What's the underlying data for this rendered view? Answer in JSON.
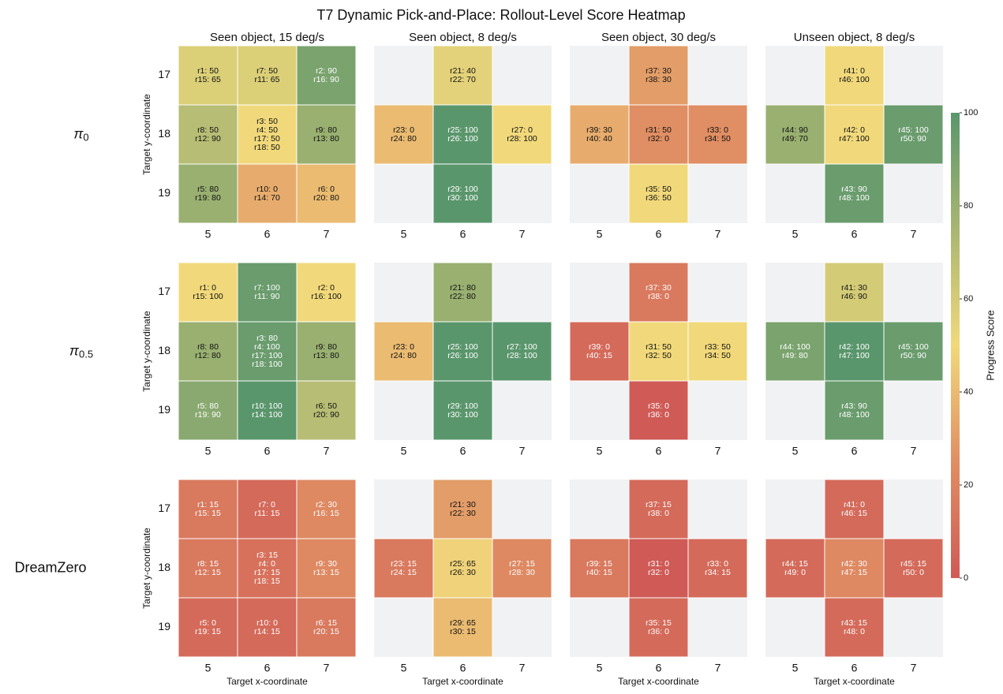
{
  "chart_data": {
    "type": "heatmap",
    "title": "T7 Dynamic Pick-and-Place: Rollout-Level Score Heatmap",
    "columns": [
      "Seen object, 15 deg/s",
      "Seen object, 8 deg/s",
      "Seen object, 30 deg/s",
      "Unseen object, 8 deg/s"
    ],
    "rows": [
      {
        "label": "π",
        "sub": "0"
      },
      {
        "label": "π",
        "sub": "0.5"
      },
      {
        "label": "DreamZero"
      }
    ],
    "xlabel": "Target x-coordinate",
    "ylabel": "Target y-coordinate",
    "xlim": [
      4.5,
      7.5
    ],
    "ylim": [
      16.5,
      19.5
    ],
    "xticks": [
      5,
      6,
      7
    ],
    "yticks": [
      17,
      18,
      19
    ],
    "colorbar": {
      "label": "Progress Score",
      "lim": [
        0,
        100
      ],
      "ticks": [
        0,
        20,
        40,
        60,
        80,
        100
      ],
      "colors": [
        "#cf5a56",
        "#e08e63",
        "#f1d97b",
        "#a9b672",
        "#5a966c"
      ]
    },
    "panels": [
      [
        [
          {
            "x": 5,
            "y": 17,
            "values": [
              50,
              65
            ],
            "value_labels": [
              "r1: 50",
              "r15: 65"
            ]
          },
          {
            "x": 6,
            "y": 17,
            "values": [
              50,
              65
            ],
            "value_labels": [
              "r7: 50",
              "r11: 65"
            ]
          },
          {
            "x": 7,
            "y": 17,
            "values": [
              90,
              90
            ],
            "value_labels": [
              "r2: 90",
              "r16: 90"
            ]
          },
          {
            "x": 5,
            "y": 18,
            "values": [
              50,
              90
            ],
            "value_labels": [
              "r8: 50",
              "r12: 90"
            ]
          },
          {
            "x": 6,
            "y": 18,
            "values": [
              50,
              50,
              50,
              50
            ],
            "value_labels": [
              "r3: 50",
              "r4: 50",
              "r17: 50",
              "r18: 50"
            ]
          },
          {
            "x": 7,
            "y": 18,
            "values": [
              80,
              80
            ],
            "value_labels": [
              "r9: 80",
              "r13: 80"
            ]
          },
          {
            "x": 5,
            "y": 19,
            "values": [
              80,
              80
            ],
            "value_labels": [
              "r5: 80",
              "r19: 80"
            ]
          },
          {
            "x": 6,
            "y": 19,
            "values": [
              0,
              70
            ],
            "value_labels": [
              "r10: 0",
              "r14: 70"
            ]
          },
          {
            "x": 7,
            "y": 19,
            "values": [
              0,
              80
            ],
            "value_labels": [
              "r6: 0",
              "r20: 80"
            ]
          }
        ],
        [
          {
            "x": 6,
            "y": 17,
            "values": [
              40,
              70
            ],
            "value_labels": [
              "r21: 40",
              "r22: 70"
            ]
          },
          {
            "x": 5,
            "y": 18,
            "values": [
              0,
              80
            ],
            "value_labels": [
              "r23: 0",
              "r24: 80"
            ]
          },
          {
            "x": 6,
            "y": 18,
            "values": [
              100,
              100
            ],
            "value_labels": [
              "r25: 100",
              "r26: 100"
            ]
          },
          {
            "x": 7,
            "y": 18,
            "values": [
              0,
              100
            ],
            "value_labels": [
              "r27: 0",
              "r28: 100"
            ]
          },
          {
            "x": 6,
            "y": 19,
            "values": [
              100,
              100
            ],
            "value_labels": [
              "r29: 100",
              "r30: 100"
            ]
          }
        ],
        [
          {
            "x": 6,
            "y": 17,
            "values": [
              30,
              30
            ],
            "value_labels": [
              "r37: 30",
              "r38: 30"
            ]
          },
          {
            "x": 5,
            "y": 18,
            "values": [
              30,
              40
            ],
            "value_labels": [
              "r39: 30",
              "r40: 40"
            ]
          },
          {
            "x": 6,
            "y": 18,
            "values": [
              50,
              0
            ],
            "value_labels": [
              "r31: 50",
              "r32: 0"
            ]
          },
          {
            "x": 7,
            "y": 18,
            "values": [
              0,
              50
            ],
            "value_labels": [
              "r33: 0",
              "r34: 50"
            ]
          },
          {
            "x": 6,
            "y": 19,
            "values": [
              50,
              50
            ],
            "value_labels": [
              "r35: 50",
              "r36: 50"
            ]
          }
        ],
        [
          {
            "x": 6,
            "y": 17,
            "values": [
              0,
              100
            ],
            "value_labels": [
              "r41: 0",
              "r46: 100"
            ]
          },
          {
            "x": 5,
            "y": 18,
            "values": [
              90,
              70
            ],
            "value_labels": [
              "r44: 90",
              "r49: 70"
            ]
          },
          {
            "x": 6,
            "y": 18,
            "values": [
              0,
              100
            ],
            "value_labels": [
              "r42: 0",
              "r47: 100"
            ]
          },
          {
            "x": 7,
            "y": 18,
            "values": [
              100,
              90
            ],
            "value_labels": [
              "r45: 100",
              "r50: 90"
            ]
          },
          {
            "x": 6,
            "y": 19,
            "values": [
              90,
              100
            ],
            "value_labels": [
              "r43: 90",
              "r48: 100"
            ]
          }
        ]
      ],
      [
        [
          {
            "x": 5,
            "y": 17,
            "values": [
              0,
              100
            ],
            "value_labels": [
              "r1: 0",
              "r15: 100"
            ]
          },
          {
            "x": 6,
            "y": 17,
            "values": [
              100,
              90
            ],
            "value_labels": [
              "r7: 100",
              "r11: 90"
            ]
          },
          {
            "x": 7,
            "y": 17,
            "values": [
              0,
              100
            ],
            "value_labels": [
              "r2: 0",
              "r16: 100"
            ]
          },
          {
            "x": 5,
            "y": 18,
            "values": [
              80,
              80
            ],
            "value_labels": [
              "r8: 80",
              "r12: 80"
            ]
          },
          {
            "x": 6,
            "y": 18,
            "values": [
              80,
              100,
              100,
              100
            ],
            "value_labels": [
              "r3: 80",
              "r4: 100",
              "r17: 100",
              "r18: 100"
            ]
          },
          {
            "x": 7,
            "y": 18,
            "values": [
              80,
              80
            ],
            "value_labels": [
              "r9: 80",
              "r13: 80"
            ]
          },
          {
            "x": 5,
            "y": 19,
            "values": [
              80,
              90
            ],
            "value_labels": [
              "r5: 80",
              "r19: 90"
            ]
          },
          {
            "x": 6,
            "y": 19,
            "values": [
              100,
              100
            ],
            "value_labels": [
              "r10: 100",
              "r14: 100"
            ]
          },
          {
            "x": 7,
            "y": 19,
            "values": [
              50,
              90
            ],
            "value_labels": [
              "r6: 50",
              "r20: 90"
            ]
          }
        ],
        [
          {
            "x": 6,
            "y": 17,
            "values": [
              80,
              80
            ],
            "value_labels": [
              "r21: 80",
              "r22: 80"
            ]
          },
          {
            "x": 5,
            "y": 18,
            "values": [
              0,
              80
            ],
            "value_labels": [
              "r23: 0",
              "r24: 80"
            ]
          },
          {
            "x": 6,
            "y": 18,
            "values": [
              100,
              100
            ],
            "value_labels": [
              "r25: 100",
              "r26: 100"
            ]
          },
          {
            "x": 7,
            "y": 18,
            "values": [
              100,
              100
            ],
            "value_labels": [
              "r27: 100",
              "r28: 100"
            ]
          },
          {
            "x": 6,
            "y": 19,
            "values": [
              100,
              100
            ],
            "value_labels": [
              "r29: 100",
              "r30: 100"
            ]
          }
        ],
        [
          {
            "x": 6,
            "y": 17,
            "values": [
              30,
              0
            ],
            "value_labels": [
              "r37: 30",
              "r38: 0"
            ]
          },
          {
            "x": 5,
            "y": 18,
            "values": [
              0,
              15
            ],
            "value_labels": [
              "r39: 0",
              "r40: 15"
            ]
          },
          {
            "x": 6,
            "y": 18,
            "values": [
              50,
              50
            ],
            "value_labels": [
              "r31: 50",
              "r32: 50"
            ]
          },
          {
            "x": 7,
            "y": 18,
            "values": [
              50,
              50
            ],
            "value_labels": [
              "r33: 50",
              "r34: 50"
            ]
          },
          {
            "x": 6,
            "y": 19,
            "values": [
              0,
              0
            ],
            "value_labels": [
              "r35: 0",
              "r36: 0"
            ]
          }
        ],
        [
          {
            "x": 6,
            "y": 17,
            "values": [
              30,
              90
            ],
            "value_labels": [
              "r41: 30",
              "r46: 90"
            ]
          },
          {
            "x": 5,
            "y": 18,
            "values": [
              100,
              80
            ],
            "value_labels": [
              "r44: 100",
              "r49: 80"
            ]
          },
          {
            "x": 6,
            "y": 18,
            "values": [
              100,
              100
            ],
            "value_labels": [
              "r42: 100",
              "r47: 100"
            ]
          },
          {
            "x": 7,
            "y": 18,
            "values": [
              100,
              90
            ],
            "value_labels": [
              "r45: 100",
              "r50: 90"
            ]
          },
          {
            "x": 6,
            "y": 19,
            "values": [
              90,
              100
            ],
            "value_labels": [
              "r43: 90",
              "r48: 100"
            ]
          }
        ]
      ],
      [
        [
          {
            "x": 5,
            "y": 17,
            "values": [
              15,
              15
            ],
            "value_labels": [
              "r1: 15",
              "r15: 15"
            ]
          },
          {
            "x": 6,
            "y": 17,
            "values": [
              0,
              15
            ],
            "value_labels": [
              "r7: 0",
              "r11: 15"
            ]
          },
          {
            "x": 7,
            "y": 17,
            "values": [
              30,
              15
            ],
            "value_labels": [
              "r2: 30",
              "r16: 15"
            ]
          },
          {
            "x": 5,
            "y": 18,
            "values": [
              15,
              15
            ],
            "value_labels": [
              "r8: 15",
              "r12: 15"
            ]
          },
          {
            "x": 6,
            "y": 18,
            "values": [
              15,
              0,
              15,
              15
            ],
            "value_labels": [
              "r3: 15",
              "r4: 0",
              "r17: 15",
              "r18: 15"
            ]
          },
          {
            "x": 7,
            "y": 18,
            "values": [
              30,
              15
            ],
            "value_labels": [
              "r9: 30",
              "r13: 15"
            ]
          },
          {
            "x": 5,
            "y": 19,
            "values": [
              0,
              15
            ],
            "value_labels": [
              "r5: 0",
              "r19: 15"
            ]
          },
          {
            "x": 6,
            "y": 19,
            "values": [
              0,
              15
            ],
            "value_labels": [
              "r10: 0",
              "r14: 15"
            ]
          },
          {
            "x": 7,
            "y": 19,
            "values": [
              15,
              15
            ],
            "value_labels": [
              "r6: 15",
              "r20: 15"
            ]
          }
        ],
        [
          {
            "x": 6,
            "y": 17,
            "values": [
              30,
              30
            ],
            "value_labels": [
              "r21: 30",
              "r22: 30"
            ]
          },
          {
            "x": 5,
            "y": 18,
            "values": [
              15,
              15
            ],
            "value_labels": [
              "r23: 15",
              "r24: 15"
            ]
          },
          {
            "x": 6,
            "y": 18,
            "values": [
              65,
              30
            ],
            "value_labels": [
              "r25: 65",
              "r26: 30"
            ]
          },
          {
            "x": 7,
            "y": 18,
            "values": [
              15,
              30
            ],
            "value_labels": [
              "r27: 15",
              "r28: 30"
            ]
          },
          {
            "x": 6,
            "y": 19,
            "values": [
              65,
              15
            ],
            "value_labels": [
              "r29: 65",
              "r30: 15"
            ]
          }
        ],
        [
          {
            "x": 6,
            "y": 17,
            "values": [
              15,
              0
            ],
            "value_labels": [
              "r37: 15",
              "r38: 0"
            ]
          },
          {
            "x": 5,
            "y": 18,
            "values": [
              15,
              15
            ],
            "value_labels": [
              "r39: 15",
              "r40: 15"
            ]
          },
          {
            "x": 6,
            "y": 18,
            "values": [
              0,
              0
            ],
            "value_labels": [
              "r31: 0",
              "r32: 0"
            ]
          },
          {
            "x": 7,
            "y": 18,
            "values": [
              0,
              15
            ],
            "value_labels": [
              "r33: 0",
              "r34: 15"
            ]
          },
          {
            "x": 6,
            "y": 19,
            "values": [
              15,
              0
            ],
            "value_labels": [
              "r35: 15",
              "r36: 0"
            ]
          }
        ],
        [
          {
            "x": 6,
            "y": 17,
            "values": [
              0,
              15
            ],
            "value_labels": [
              "r41: 0",
              "r46: 15"
            ]
          },
          {
            "x": 5,
            "y": 18,
            "values": [
              15,
              0
            ],
            "value_labels": [
              "r44: 15",
              "r49: 0"
            ]
          },
          {
            "x": 6,
            "y": 18,
            "values": [
              30,
              15
            ],
            "value_labels": [
              "r42: 30",
              "r47: 15"
            ]
          },
          {
            "x": 7,
            "y": 18,
            "values": [
              15,
              0
            ],
            "value_labels": [
              "r45: 15",
              "r50: 0"
            ]
          },
          {
            "x": 6,
            "y": 19,
            "values": [
              15,
              0
            ],
            "value_labels": [
              "r43: 15",
              "r48: 0"
            ]
          }
        ]
      ]
    ]
  }
}
